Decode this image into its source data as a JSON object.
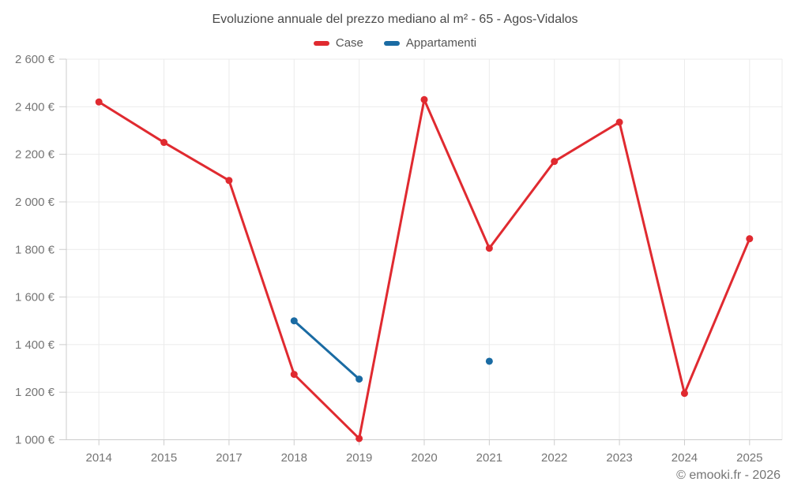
{
  "header": {
    "title": "Evoluzione annuale del prezzo mediano al m² - 65 - Agos-Vidalos"
  },
  "footer": {
    "attribution": "© emooki.fr - 2026"
  },
  "colors": {
    "case_red": "#e02a30",
    "apartments_blue": "#1a6ba3",
    "grid": "#ebebeb",
    "axis": "#cccccc",
    "tick_label": "#757575",
    "background": "#ffffff"
  },
  "chart_data": {
    "type": "line",
    "title": "Evoluzione annuale del prezzo mediano al m² - 65 - Agos-Vidalos",
    "categories": [
      "2014",
      "2015",
      "2017",
      "2018",
      "2019",
      "2020",
      "2021",
      "2022",
      "2023",
      "2024",
      "2025"
    ],
    "series": [
      {
        "name": "Case",
        "color": "#e02a30",
        "values": [
          2420,
          2250,
          2090,
          1275,
          1005,
          2430,
          1805,
          2170,
          2335,
          1195,
          1845
        ]
      },
      {
        "name": "Appartamenti",
        "color": "#1a6ba3",
        "values": [
          null,
          null,
          null,
          1500,
          1255,
          null,
          1330,
          null,
          null,
          null,
          null
        ]
      }
    ],
    "xlabel": "",
    "ylabel": "",
    "ylim": [
      1000,
      2600
    ],
    "yticks": [
      {
        "value": 1000,
        "label": "1 000 €"
      },
      {
        "value": 1200,
        "label": "1 200 €"
      },
      {
        "value": 1400,
        "label": "1 400 €"
      },
      {
        "value": 1600,
        "label": "1 600 €"
      },
      {
        "value": 1800,
        "label": "1 800 €"
      },
      {
        "value": 2000,
        "label": "2 000 €"
      },
      {
        "value": 2200,
        "label": "2 200 €"
      },
      {
        "value": 2400,
        "label": "2 400 €"
      },
      {
        "value": 2600,
        "label": "2 600 €"
      }
    ],
    "grid": true,
    "legend_position": "top",
    "marker": "circle"
  }
}
